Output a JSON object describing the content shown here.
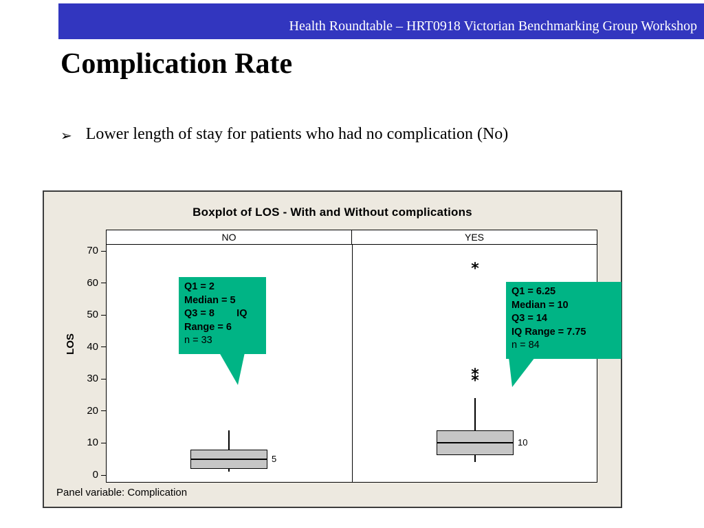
{
  "colors": {
    "banner_blue": "#3236bf",
    "chart_bg": "#ede9e0",
    "box_fill": "#c6c6c6",
    "callout_green": "#00b485"
  },
  "banner": {
    "text": "Health Roundtable – HRT0918 Victorian Benchmarking Group Workshop"
  },
  "slide": {
    "title": "Complication Rate",
    "bullet_glyph": "➢",
    "bullet_text": "Lower length of stay for patients who had no complication (No)"
  },
  "chart_data": {
    "type": "boxplot",
    "title": "Boxplot of LOS - With and Without complications",
    "ylabel": "LOS",
    "ylim": [
      0,
      70
    ],
    "yticks": [
      70,
      60,
      50,
      40,
      30,
      20,
      10,
      0
    ],
    "panels": [
      "NO",
      "YES"
    ],
    "panel_variable_label": "Panel variable: Complication",
    "grid": false,
    "series": [
      {
        "panel": "NO",
        "q1": 2,
        "median": 5,
        "q3": 8,
        "iq_range": 6,
        "n": 33,
        "whisker_low": 1,
        "whisker_high": 14,
        "outliers": [],
        "median_label": "5",
        "callout_lines": [
          "Q1 = 2",
          "Median = 5",
          "Q3 = 8        IQ",
          "Range = 6"
        ],
        "callout_note": "n = 33"
      },
      {
        "panel": "YES",
        "q1": 6.25,
        "median": 10,
        "q3": 14,
        "iq_range": 7.75,
        "n": 84,
        "whisker_low": 4,
        "whisker_high": 24,
        "outliers": [
          64,
          31,
          29
        ],
        "median_label": "10",
        "callout_lines": [
          "Q1 = 6.25",
          "Median = 10",
          "Q3 = 14",
          "IQ Range = 7.75"
        ],
        "callout_note": "n = 84"
      }
    ]
  }
}
